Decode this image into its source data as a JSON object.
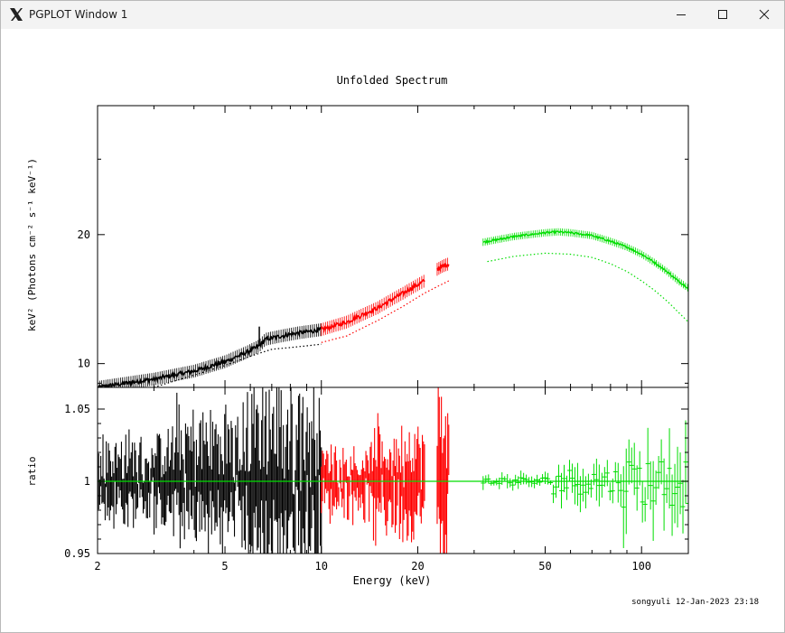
{
  "window": {
    "title": "PGPLOT Window 1",
    "icons": {
      "app": "x11-icon",
      "minimize": "minimize-icon",
      "maximize": "maximize-icon",
      "close": "close-icon"
    }
  },
  "plot": {
    "title": "Unfolded Spectrum",
    "stamp": "songyuli 12-Jan-2023 23:18",
    "xlabel": "Energy (keV)",
    "top_ylabel": "keV² (Photons cm⁻² s⁻¹ keV⁻¹)",
    "bottom_ylabel": "ratio",
    "colors": {
      "black": "#000000",
      "red": "#ff0000",
      "green": "#00dd00"
    }
  },
  "chart_data": [
    {
      "type": "line",
      "panel": "top",
      "xscale": "log",
      "yscale": "log",
      "xlim": [
        2,
        140
      ],
      "ylim": [
        8.8,
        40
      ],
      "x_ticks": [
        "2",
        "5",
        "10",
        "20",
        "50",
        "100"
      ],
      "y_ticks": [
        "10",
        "20"
      ],
      "series": [
        {
          "color": "black",
          "kind": "data",
          "x": [
            2.0,
            3.0,
            4.0,
            5.0,
            5.8,
            6.4,
            6.7,
            7.5,
            8.5,
            10.0
          ],
          "y": [
            8.8,
            9.2,
            9.6,
            10.1,
            10.6,
            11.0,
            11.4,
            11.6,
            11.8,
            12.0
          ],
          "spike": {
            "x": 6.4,
            "y": 12.2
          }
        },
        {
          "color": "black",
          "kind": "model",
          "x": [
            3.0,
            4.0,
            5.0,
            6.0,
            7.0,
            8.0,
            9.0,
            10.0
          ],
          "y": [
            8.8,
            9.4,
            9.9,
            10.4,
            10.8,
            10.9,
            11.0,
            11.1
          ]
        },
        {
          "color": "red",
          "kind": "data",
          "x": [
            10.0,
            12.0,
            15.0,
            18.0,
            21.0
          ],
          "y": [
            12.0,
            12.5,
            13.5,
            14.6,
            15.6
          ]
        },
        {
          "color": "red",
          "kind": "data",
          "x": [
            23.0,
            24.0,
            25.0
          ],
          "y": [
            16.6,
            16.9,
            17.1
          ]
        },
        {
          "color": "red",
          "kind": "model",
          "x": [
            10.0,
            12.0,
            15.0,
            18.0,
            21.0,
            25.0
          ],
          "y": [
            11.2,
            11.6,
            12.6,
            13.6,
            14.6,
            15.6
          ]
        },
        {
          "color": "green",
          "kind": "data",
          "x": [
            32,
            40,
            50,
            55,
            60,
            70,
            80,
            90,
            100,
            110,
            120,
            130,
            140
          ],
          "y": [
            19.2,
            19.8,
            20.2,
            20.3,
            20.2,
            19.9,
            19.3,
            18.7,
            18.0,
            17.2,
            16.4,
            15.6,
            15.0
          ]
        },
        {
          "color": "green",
          "kind": "model",
          "x": [
            33,
            40,
            50,
            60,
            70,
            80,
            90,
            100,
            110,
            120,
            130,
            140
          ],
          "y": [
            17.3,
            17.8,
            18.1,
            18.0,
            17.7,
            17.1,
            16.4,
            15.6,
            14.8,
            14.0,
            13.2,
            12.5
          ]
        }
      ]
    },
    {
      "type": "line",
      "panel": "bottom",
      "xscale": "log",
      "xlim": [
        2,
        140
      ],
      "ylim": [
        0.95,
        1.065
      ],
      "x_ticks": [
        "2",
        "5",
        "10",
        "20",
        "50",
        "100"
      ],
      "y_ticks": [
        "0.95",
        "1",
        "1.05"
      ],
      "reference_line": {
        "y": 1.0,
        "color": "green"
      },
      "series": [
        {
          "color": "black",
          "kind": "ratio",
          "x_range": [
            2,
            10
          ],
          "amplitude": [
            0.025,
            0.04,
            0.055
          ]
        },
        {
          "color": "red",
          "kind": "ratio",
          "x_range": [
            10,
            21
          ],
          "amplitude": [
            0.02,
            0.03
          ]
        },
        {
          "color": "red",
          "kind": "ratio",
          "x_range": [
            23,
            25
          ],
          "amplitude": [
            0.05
          ]
        },
        {
          "color": "green",
          "kind": "ratio",
          "x_range": [
            32,
            140
          ],
          "amplitude": [
            0.005,
            0.015,
            0.03
          ]
        }
      ]
    }
  ]
}
